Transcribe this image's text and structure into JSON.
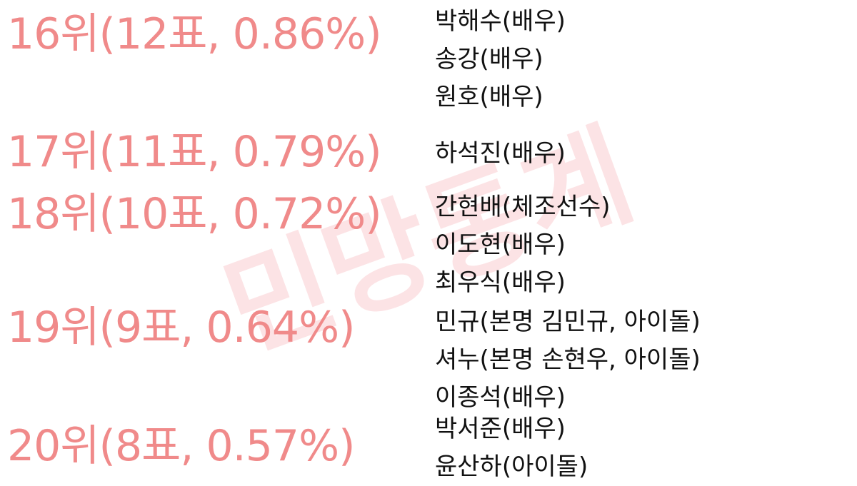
{
  "watermark": "민망통계",
  "entries": [
    {
      "rank": "16위(12표, 0.86%)",
      "names": [
        "박해수(배우)",
        "송강(배우)",
        "원호(배우)"
      ]
    },
    {
      "rank": "17위(11표, 0.79%)",
      "names": [
        "하석진(배우)"
      ]
    },
    {
      "rank": "18위(10표, 0.72%)",
      "names": [
        "간현배(체조선수)",
        "이도현(배우)",
        "최우식(배우)"
      ]
    },
    {
      "rank": "19위(9표, 0.64%)",
      "names": [
        "민규(본명 김민규, 아이돌)",
        "셔누(본명 손현우, 아이돌)",
        "이종석(배우)"
      ]
    },
    {
      "rank": "20위(8표, 0.57%)",
      "names": [
        "박서준(배우)",
        "윤산하(아이돌)"
      ]
    }
  ],
  "colors": {
    "rank_text": "#f08a8a",
    "name_text": "#111111",
    "watermark": "#f05a64"
  }
}
